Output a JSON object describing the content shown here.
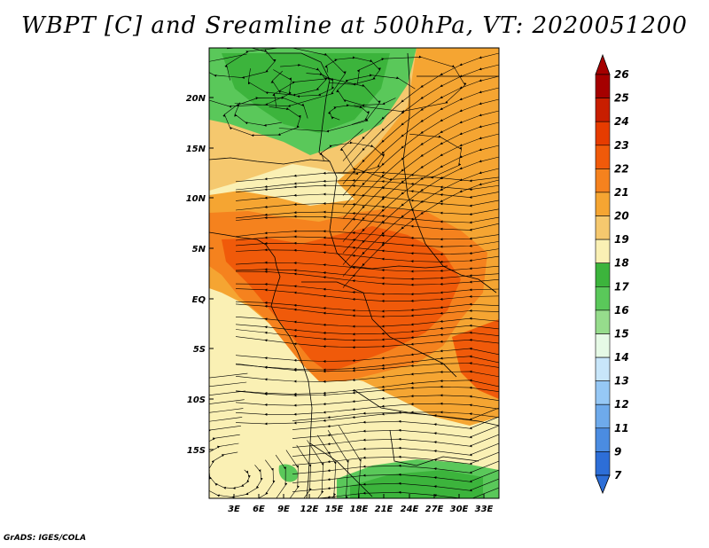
{
  "title": "WBPT [C] and Sreamline at 500hPa, VT: 2020051200",
  "footer": "GrADS: IGES/COLA",
  "map": {
    "lat_labels": [
      "20N",
      "15N",
      "10N",
      "5N",
      "EQ",
      "5S",
      "10S",
      "15S"
    ],
    "lon_labels": [
      "3E",
      "6E",
      "9E",
      "12E",
      "15E",
      "18E",
      "21E",
      "24E",
      "27E",
      "30E",
      "33E"
    ]
  },
  "colorbar": {
    "labels": [
      "26",
      "25",
      "24",
      "23",
      "22",
      "21",
      "20",
      "19",
      "18",
      "17",
      "16",
      "15",
      "14",
      "13",
      "12",
      "11",
      "9",
      "7"
    ],
    "colors": [
      "#a50000",
      "#c81e00",
      "#e63c00",
      "#f05a0a",
      "#f5821e",
      "#f5a532",
      "#f5c86e",
      "#faf0b4",
      "#3cb43c",
      "#5ac85a",
      "#96dc8c",
      "#e6fae6",
      "#c8e6fa",
      "#96c8f5",
      "#6eaaeb",
      "#4b8ce1",
      "#2d6ed7"
    ]
  },
  "palette": {
    "green_dark": "#3cb43c",
    "green_mid": "#5ac85a",
    "pale": "#faf0b4",
    "tan": "#f5c86e",
    "orange_lt": "#f5a532",
    "orange": "#f5821e",
    "orange_dk": "#f05a0a",
    "red": "#e63c00"
  }
}
